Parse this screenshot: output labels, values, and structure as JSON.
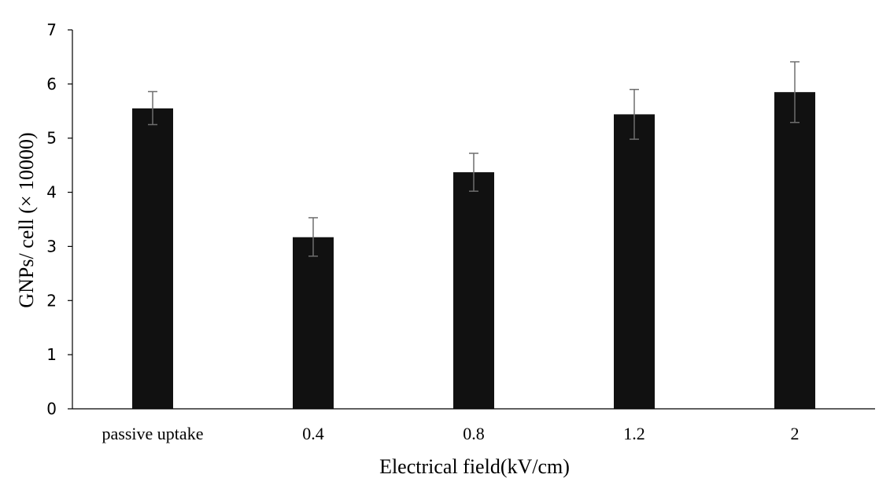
{
  "chart_data": {
    "type": "bar",
    "title": "",
    "xlabel": "Electrical field(kV/cm)",
    "ylabel": "GNPs/ cell (× 10000)",
    "categories": [
      "passive uptake",
      "0.4",
      "0.8",
      "1.2",
      "2"
    ],
    "values": [
      5.55,
      3.17,
      4.37,
      5.44,
      5.85
    ],
    "error_low": [
      5.25,
      2.82,
      4.02,
      4.98,
      5.29
    ],
    "error_high": [
      5.86,
      3.53,
      4.72,
      5.9,
      6.41
    ],
    "ylim": [
      0,
      7
    ],
    "yticks": [
      "0",
      "1",
      "2",
      "3",
      "4",
      "5",
      "6",
      "7"
    ],
    "grid": false,
    "legend": "none",
    "colors": {
      "bar": "#111111",
      "error_bar": "#6e6e6e",
      "axis": "#000000"
    }
  }
}
